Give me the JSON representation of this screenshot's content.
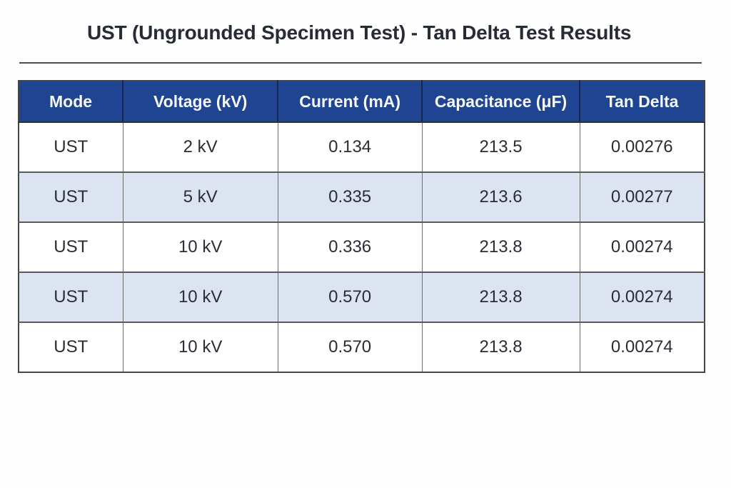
{
  "title": "UST (Ungrounded Specimen Test) - Tan Delta Test Results",
  "colors": {
    "header_background": "#1e4492",
    "header_text": "#ffffff",
    "alt_row_background": "#dce4f1",
    "row_background": "#ffffff",
    "body_text": "#2c2c34",
    "title_text": "#262b36",
    "border_gray": "#5a5a5a",
    "header_border_navy": "#17264f"
  },
  "table": {
    "headers": [
      "Mode",
      "Voltage (kV)",
      "Current (mA)",
      "Capacitance (μF)",
      "Tan Delta"
    ],
    "rows": [
      [
        "UST",
        "2 kV",
        "0.134",
        "213.5",
        "0.00276"
      ],
      [
        "UST",
        "5 kV",
        "0.335",
        "213.6",
        "0.00277"
      ],
      [
        "UST",
        "10 kV",
        "0.336",
        "213.8",
        "0.00274"
      ],
      [
        "UST",
        "10 kV",
        "0.570",
        "213.8",
        "0.00274"
      ],
      [
        "UST",
        "10 kV",
        "0.570",
        "213.8",
        "0.00274"
      ]
    ]
  },
  "chart_data": {
    "type": "table",
    "title": "UST (Ungrounded Specimen Test) - Tan Delta Test Results",
    "columns": [
      "Mode",
      "Voltage (kV)",
      "Current (mA)",
      "Capacitance (μF)",
      "Tan Delta"
    ],
    "rows": [
      {
        "mode": "UST",
        "voltage_kv": 2,
        "current_ma": 0.134,
        "capacitance_uf": 213.5,
        "tan_delta": 0.00276
      },
      {
        "mode": "UST",
        "voltage_kv": 5,
        "current_ma": 0.335,
        "capacitance_uf": 213.6,
        "tan_delta": 0.00277
      },
      {
        "mode": "UST",
        "voltage_kv": 10,
        "current_ma": 0.336,
        "capacitance_uf": 213.8,
        "tan_delta": 0.00274
      },
      {
        "mode": "UST",
        "voltage_kv": 10,
        "current_ma": 0.57,
        "capacitance_uf": 213.8,
        "tan_delta": 0.00274
      },
      {
        "mode": "UST",
        "voltage_kv": 10,
        "current_ma": 0.57,
        "capacitance_uf": 213.8,
        "tan_delta": 0.00274
      }
    ],
    "layout_hints": {
      "striped_rows": true,
      "header_style": "dark-blue-with-white-bold-text",
      "all_cells_center_aligned": true
    }
  }
}
